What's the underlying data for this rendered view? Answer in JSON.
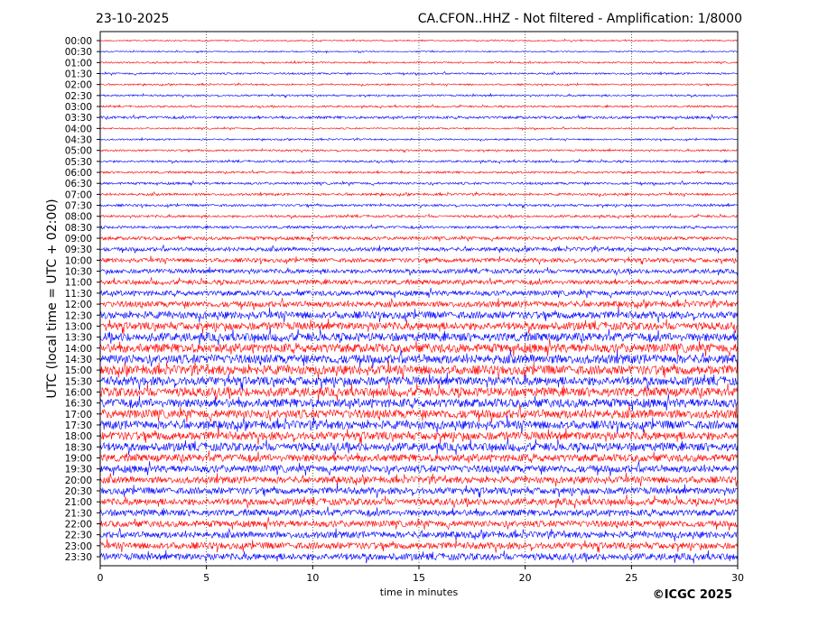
{
  "header": {
    "date": "23-10-2025",
    "title": "CA.CFON..HHZ - Not filtered - Amplification: 1/8000"
  },
  "footer": {
    "copyright": "©ICGC 2025"
  },
  "chart_data": {
    "type": "line",
    "subtype": "helicorder",
    "xlabel": "time in minutes",
    "ylabel": "UTC (local time = UTC + 02:00)",
    "xlim": [
      0,
      30
    ],
    "xticks": [
      "0",
      "5",
      "10",
      "15",
      "20",
      "25",
      "30"
    ],
    "grid": "vertical dotted at x ticks",
    "colors": [
      "#ff0000",
      "#0000ff"
    ],
    "rows": [
      "00:00",
      "00:30",
      "01:00",
      "01:30",
      "02:00",
      "02:30",
      "03:00",
      "03:30",
      "04:00",
      "04:30",
      "05:00",
      "05:30",
      "06:00",
      "06:30",
      "07:00",
      "07:30",
      "08:00",
      "08:30",
      "09:00",
      "09:30",
      "10:00",
      "10:30",
      "11:00",
      "11:30",
      "12:00",
      "12:30",
      "13:00",
      "13:30",
      "14:00",
      "14:30",
      "15:00",
      "15:30",
      "16:00",
      "16:30",
      "17:00",
      "17:30",
      "18:00",
      "18:30",
      "19:00",
      "19:30",
      "20:00",
      "20:30",
      "21:00",
      "21:30",
      "22:00",
      "22:30",
      "23:00",
      "23:30"
    ],
    "relative_amplitude": [
      0.5,
      0.5,
      0.6,
      0.7,
      0.6,
      0.7,
      0.7,
      1.0,
      0.6,
      0.6,
      0.7,
      0.8,
      0.8,
      0.9,
      0.9,
      0.9,
      0.9,
      1.0,
      1.3,
      1.5,
      1.6,
      1.7,
      1.8,
      2.0,
      2.3,
      2.8,
      3.0,
      3.3,
      3.5,
      3.5,
      3.6,
      3.4,
      3.5,
      3.4,
      3.4,
      3.3,
      3.2,
      3.2,
      2.9,
      2.8,
      2.6,
      2.6,
      2.6,
      2.5,
      2.5,
      2.5,
      2.6,
      2.6
    ]
  }
}
